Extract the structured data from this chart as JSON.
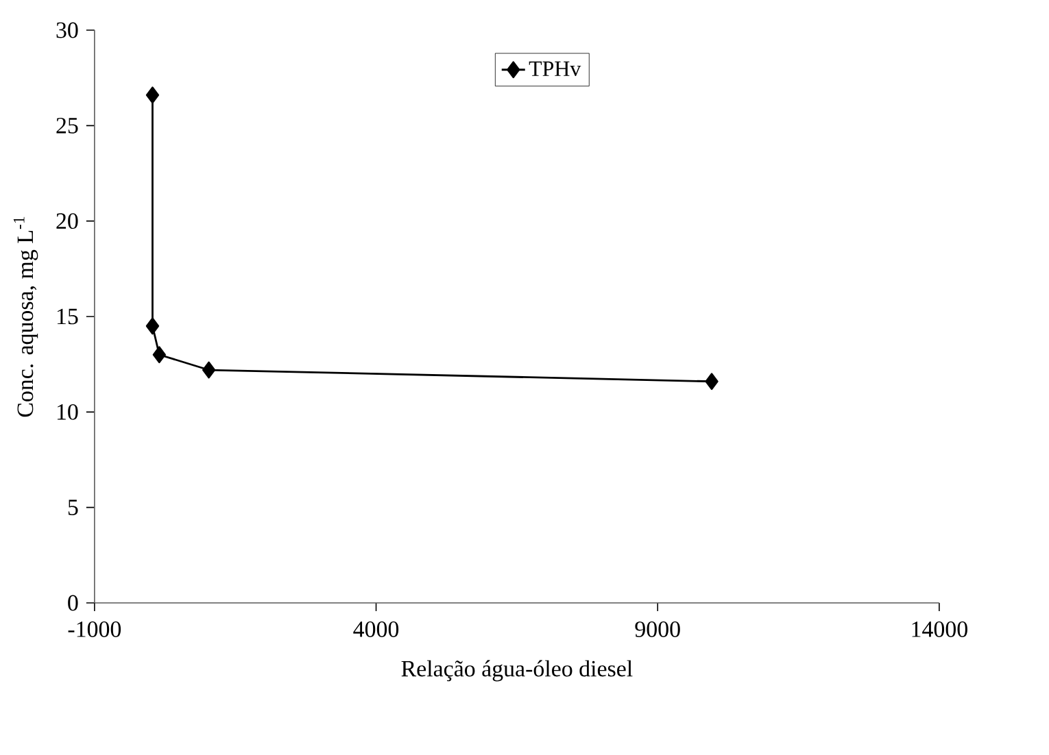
{
  "chart_data": {
    "type": "line",
    "xlabel": "Relação água-óleo diesel",
    "ylabel": "Conc. aquosa, mg L$^{-1}$",
    "xlim": [
      -1000,
      14000
    ],
    "xticks": [
      -1000,
      4000,
      9000,
      14000
    ],
    "ylim": [
      0,
      30
    ],
    "yticks": [
      0,
      5,
      10,
      15,
      20,
      25,
      30
    ],
    "legend": "top",
    "marker": "diamond",
    "line_style": "solid",
    "grid": false,
    "series": [
      {
        "name": "TPHv",
        "color": "#000000",
        "x": [
          30,
          30,
          150,
          1030,
          9960
        ],
        "values": [
          26.6,
          14.5,
          13.0,
          12.2,
          11.6
        ]
      }
    ]
  }
}
